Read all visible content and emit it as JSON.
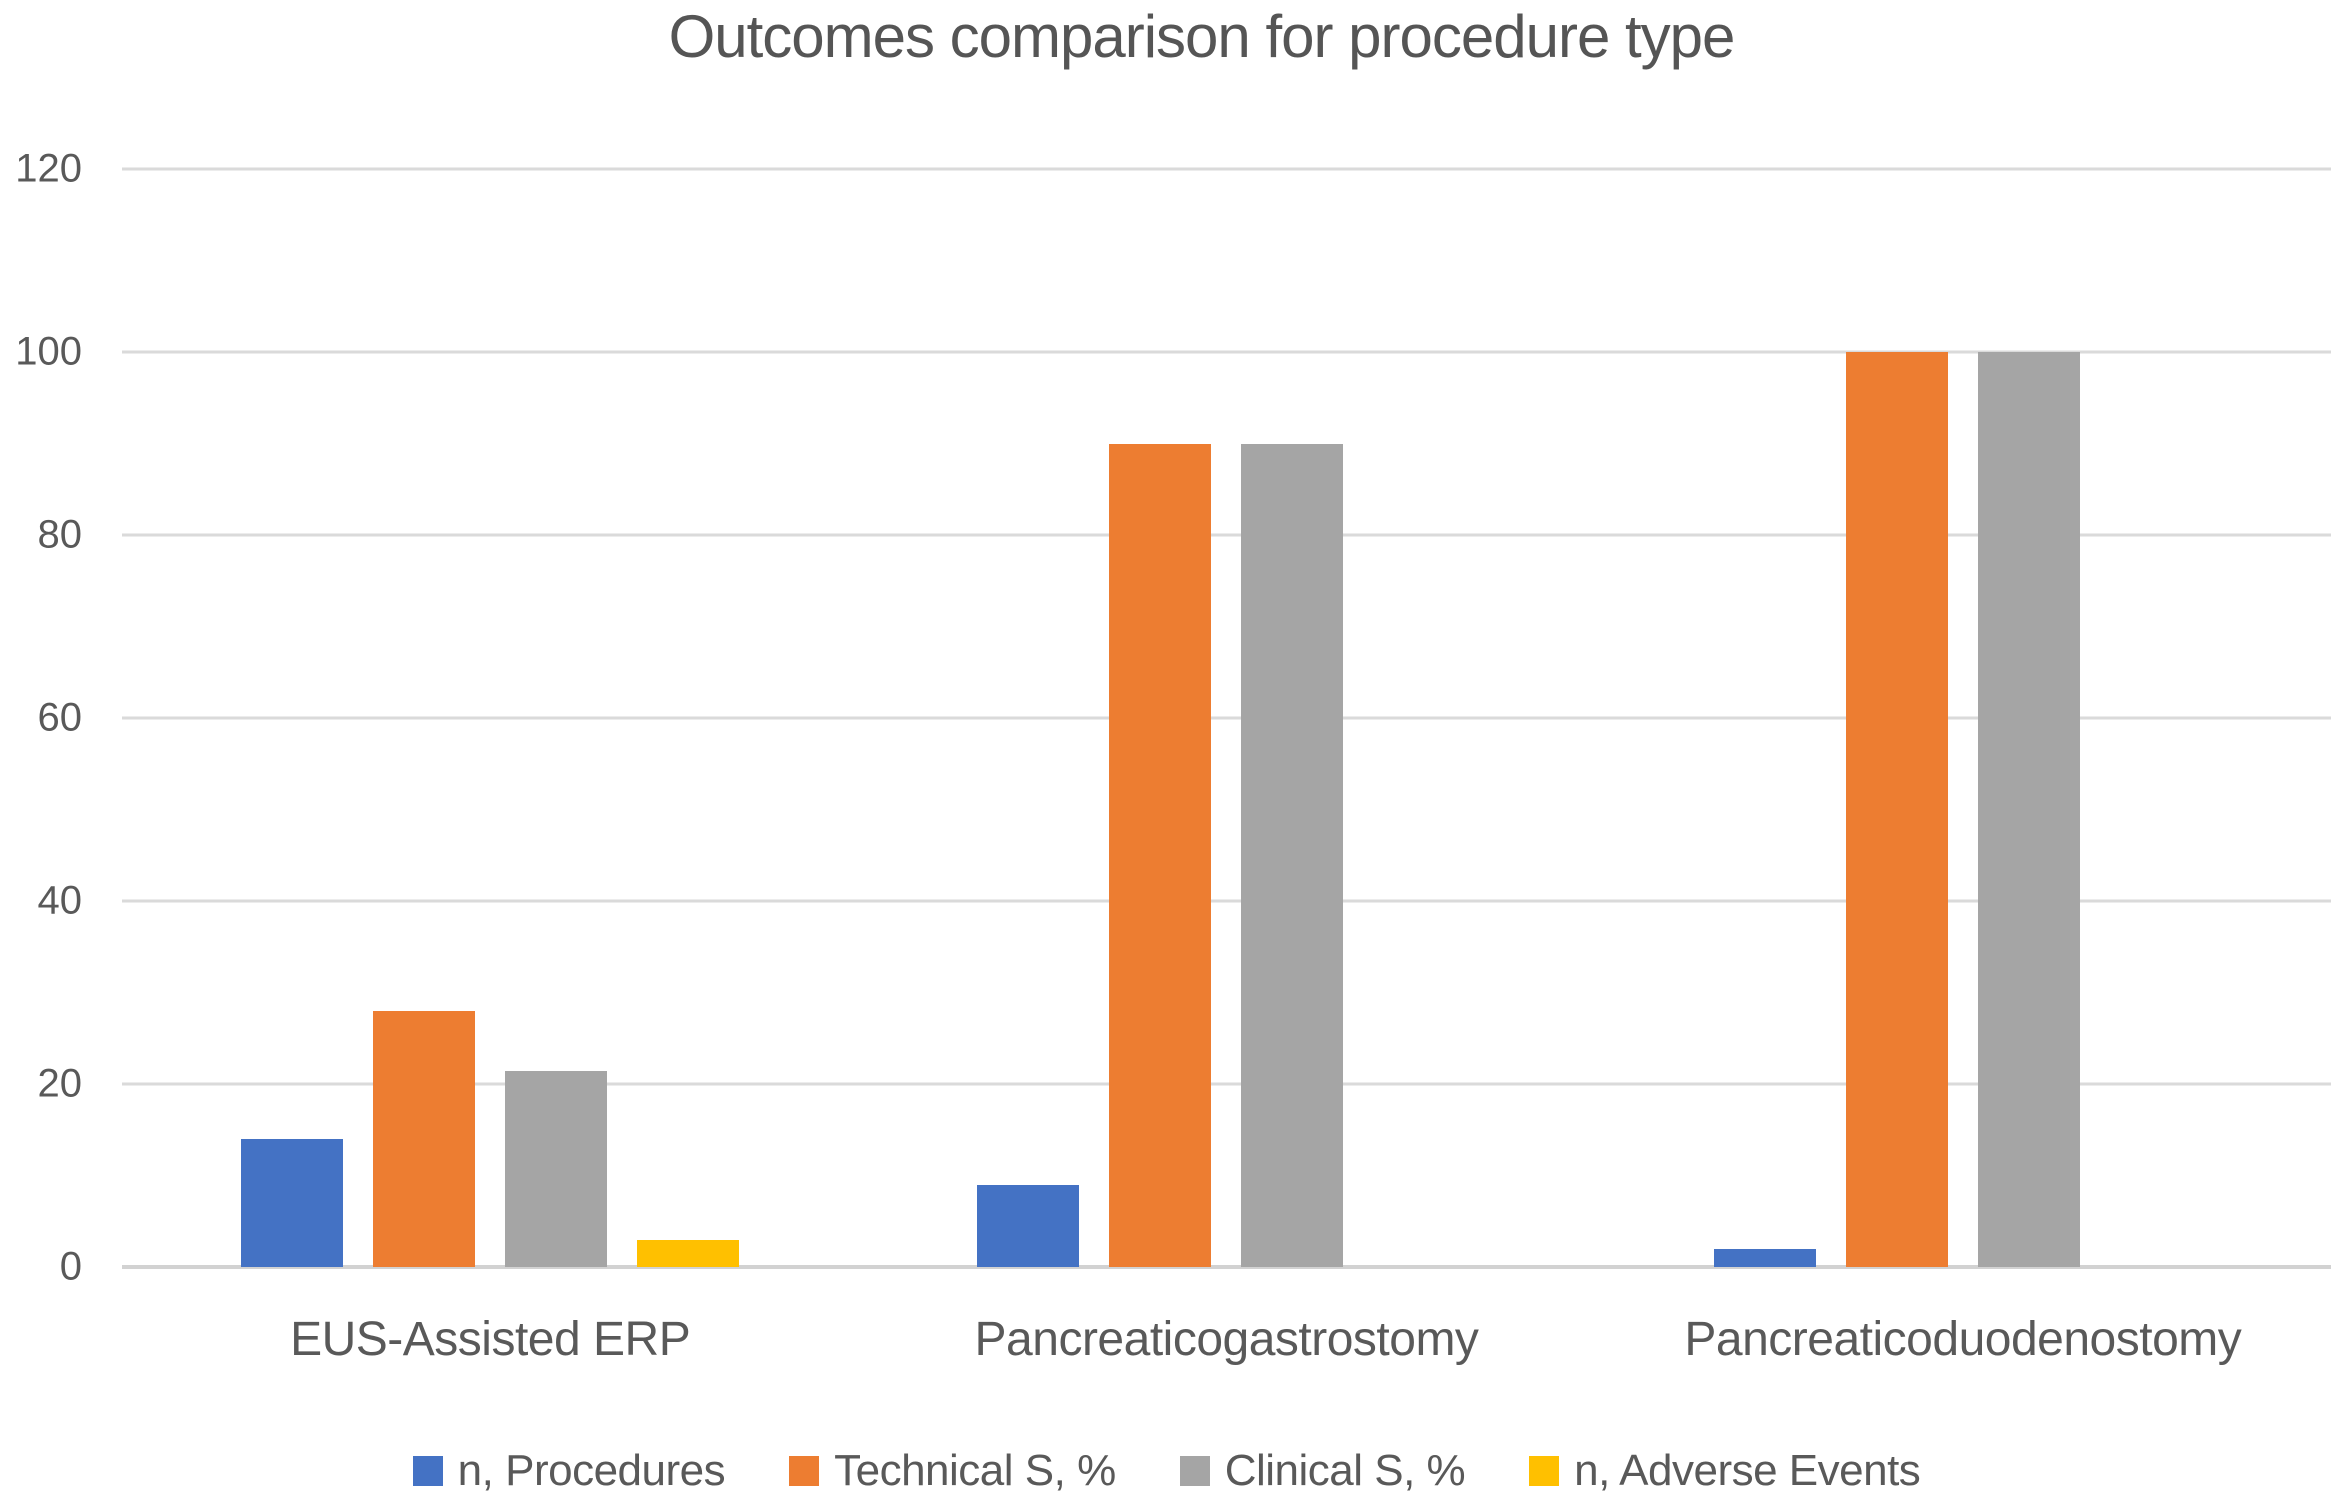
{
  "chart_data": {
    "type": "bar",
    "title": "Outcomes comparison for procedure type",
    "categories": [
      "EUS-Assisted ERP",
      "Pancreaticogastrostomy",
      "Pancreaticoduodenostomy"
    ],
    "series": [
      {
        "name": "n, Procedures",
        "color": "#4472C4",
        "values": [
          14,
          9,
          2
        ]
      },
      {
        "name": "Technical S, %",
        "color": "#ED7D31",
        "values": [
          28,
          90,
          100
        ]
      },
      {
        "name": "Clinical S, %",
        "color": "#A5A5A5",
        "values": [
          21.4,
          90,
          100
        ]
      },
      {
        "name": "n, Adverse Events",
        "color": "#FFC000",
        "values": [
          3,
          0,
          0
        ]
      }
    ],
    "ylim": [
      0,
      120
    ],
    "yticks": [
      0,
      20,
      40,
      60,
      80,
      100,
      120
    ],
    "xlabel": "",
    "ylabel": "",
    "grid": true,
    "legend_position": "bottom",
    "background": "#FFFFFF"
  }
}
